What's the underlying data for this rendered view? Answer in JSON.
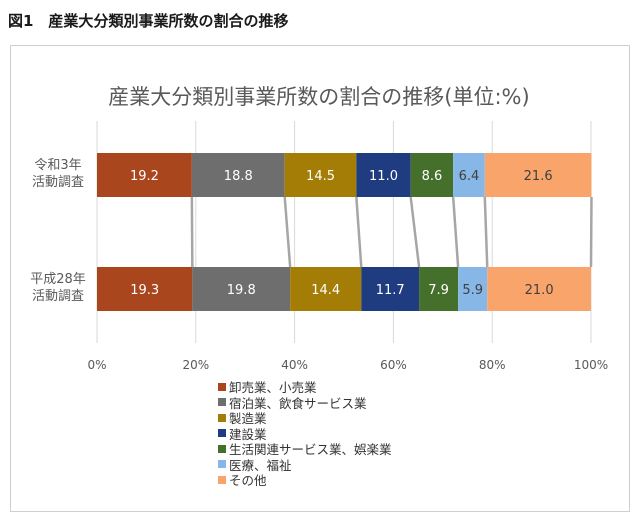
{
  "figure_caption": "図1　産業大分類別事業所数の割合の推移",
  "chart_data": {
    "type": "bar",
    "orientation": "horizontal",
    "stacked": "percent",
    "title": "産業大分類別事業所数の割合の推移(単位:%)",
    "categories": [
      [
        "令和3年",
        "活動調査"
      ],
      [
        "平成28年",
        "活動調査"
      ]
    ],
    "xlim": [
      0,
      100
    ],
    "x_ticks": [
      "0%",
      "20%",
      "40%",
      "60%",
      "80%",
      "100%"
    ],
    "grid": true,
    "legend_position": "bottom",
    "series": [
      {
        "name": "卸売業、小売業",
        "color": "#a9461d",
        "values": [
          19.2,
          19.3
        ],
        "labels": [
          "19.2",
          "19.3"
        ]
      },
      {
        "name": "宿泊業、飲食サービス業",
        "color": "#6e6e6e",
        "values": [
          18.8,
          19.8
        ],
        "labels": [
          "18.8",
          "19.8"
        ]
      },
      {
        "name": "製造業",
        "color": "#a37d06",
        "values": [
          14.5,
          14.4
        ],
        "labels": [
          "14.5",
          "14.4"
        ]
      },
      {
        "name": "建設業",
        "color": "#1f3c80",
        "values": [
          11.0,
          11.7
        ],
        "labels": [
          "11.0",
          "11.7"
        ]
      },
      {
        "name": "生活関連サービス業、娯楽業",
        "color": "#45702c",
        "values": [
          8.6,
          7.9
        ],
        "labels": [
          "8.6",
          "7.9"
        ]
      },
      {
        "name": "医療、福祉",
        "color": "#86b7e7",
        "values": [
          6.4,
          5.9
        ],
        "labels": [
          "6.4",
          "5.9"
        ]
      },
      {
        "name": "その他",
        "color": "#f9a46b",
        "values": [
          21.6,
          21.0
        ],
        "labels": [
          "21.6",
          "21.0"
        ]
      }
    ]
  }
}
